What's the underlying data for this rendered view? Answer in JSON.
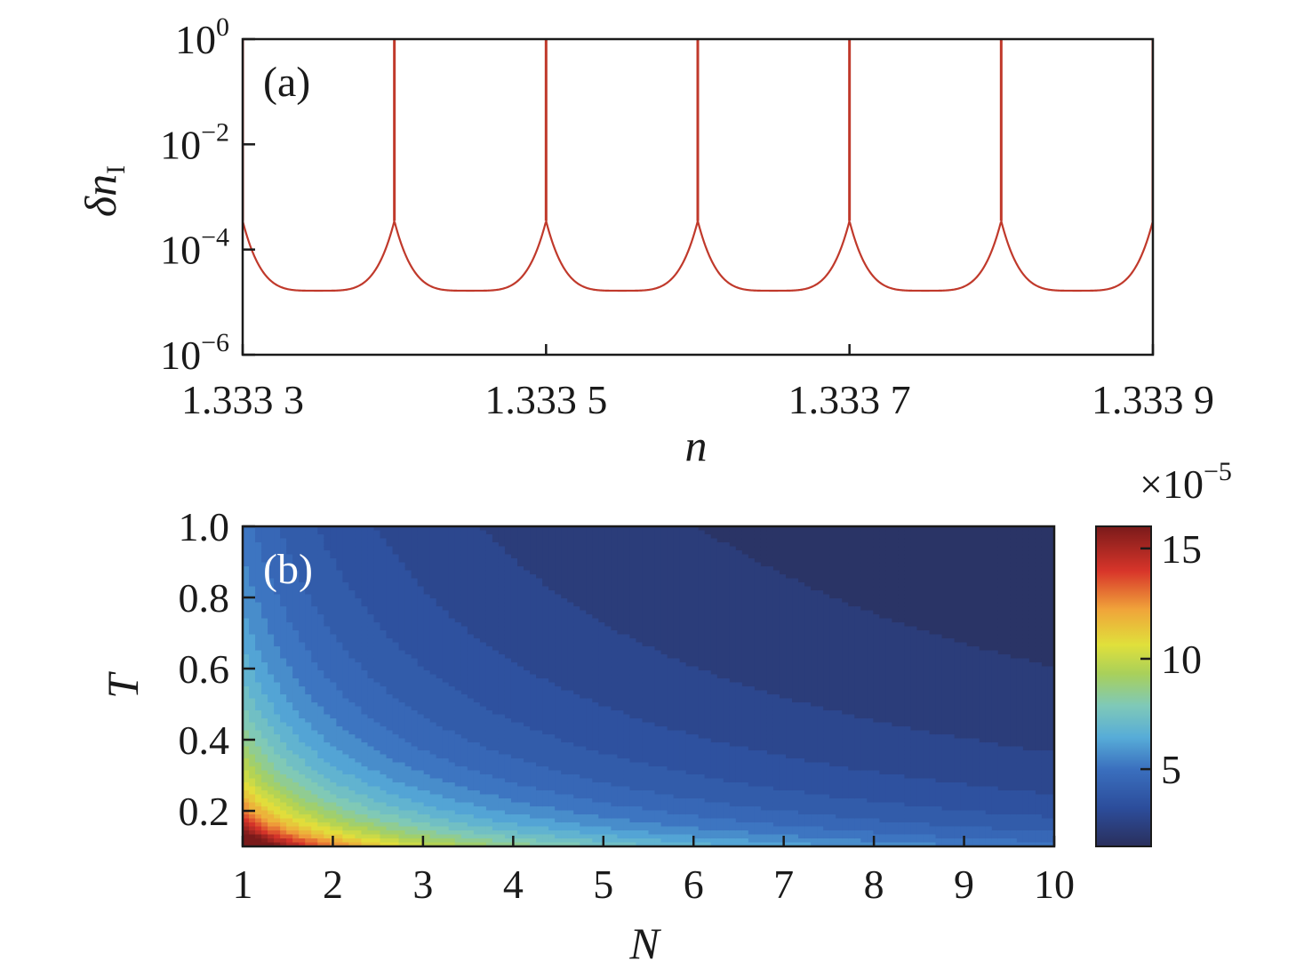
{
  "chart_data": [
    {
      "type": "line",
      "panel_label": "(a)",
      "xlabel": "n",
      "ylabel_symbol": "δn",
      "ylabel_subscript": "I",
      "x_ticks": [
        "1.333 3",
        "1.333 5",
        "1.333 7",
        "1.333 9"
      ],
      "x_tick_values": [
        1.3333,
        1.3335,
        1.3337,
        1.3339
      ],
      "xlim": [
        1.3333,
        1.3339
      ],
      "y_scale": "log",
      "ylim": [
        1e-06,
        1
      ],
      "y_ticks": [
        {
          "base": "10",
          "exp": "0",
          "value": 1
        },
        {
          "base": "10",
          "exp": "−2",
          "value": 0.01
        },
        {
          "base": "10",
          "exp": "−4",
          "value": 0.0001
        },
        {
          "base": "10",
          "exp": "−6",
          "value": 1e-06
        }
      ],
      "series": [
        {
          "color": "#c0392b",
          "description_values": {
            "resonance_positions": [
              1.3333,
              1.3334,
              1.3335,
              1.3336,
              1.3337,
              1.3338,
              1.3339
            ],
            "peak_value": 1,
            "minimum_value": 1.65e-05,
            "value_near_resonance": 0.00035
          }
        }
      ],
      "grid": false
    },
    {
      "type": "heatmap",
      "panel_label": "(b)",
      "xlabel": "N",
      "ylabel": "T",
      "x_ticks": [
        "1",
        "2",
        "3",
        "4",
        "5",
        "6",
        "7",
        "8",
        "9",
        "10"
      ],
      "xlim": [
        1,
        10
      ],
      "y_ticks": [
        "1.0",
        "0.8",
        "0.6",
        "0.4",
        "0.2"
      ],
      "ylim": [
        0.1,
        1.0
      ],
      "colorbar": {
        "multiplier_base": "×10",
        "multiplier_exp": "−5",
        "ticks": [
          "15",
          "10",
          "5"
        ],
        "tick_values": [
          15,
          10,
          5
        ],
        "range": [
          1.5,
          16
        ],
        "colormap": "jet"
      },
      "z_samples": {
        "N=1,T=0.1": 15.5,
        "N=1,T=1.0": 4.4,
        "N=10,T=0.1": 3.6,
        "N=10,T=1.0": 1.9
      },
      "grid": false
    }
  ]
}
